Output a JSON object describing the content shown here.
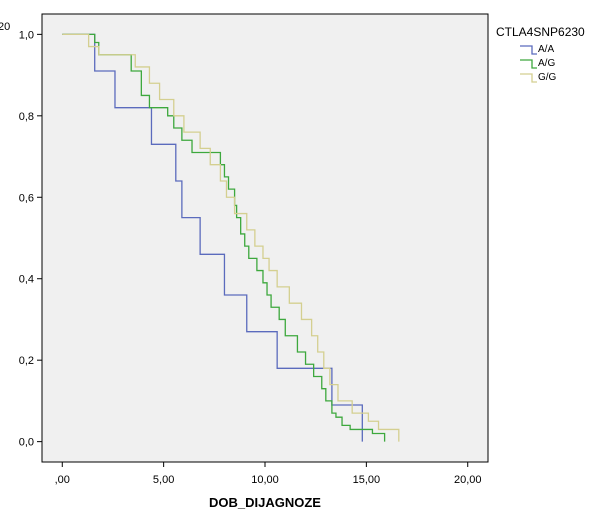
{
  "chart_data": {
    "type": "line",
    "step": true,
    "title": "",
    "top_left_fragment": "20",
    "xlabel": "DOB_DIJAGNOZE",
    "ylabel": "",
    "xlim": [
      -1.0,
      21.0
    ],
    "ylim": [
      -0.05,
      1.05
    ],
    "x_ticks": [
      0,
      5,
      10,
      15,
      20
    ],
    "x_tick_labels": [
      ",00",
      "5,00",
      "10,00",
      "15,00",
      "20,00"
    ],
    "y_ticks": [
      0.0,
      0.2,
      0.4,
      0.6,
      0.8,
      1.0
    ],
    "y_tick_labels": [
      "0,0",
      "0,2",
      "0,4",
      "0,6",
      "0,8",
      "1,0"
    ],
    "grid": false,
    "plot_background": "#f0f0f0",
    "legend": {
      "title": "CTLA4SNP6230",
      "placement": "top-right-outside"
    },
    "series": [
      {
        "name": "A/A",
        "color": "#5b6bbd",
        "x": [
          1.6,
          2.6,
          4.4,
          5.6,
          5.9,
          6.8,
          8.0,
          9.1,
          10.6,
          11.6,
          13.3,
          14.8
        ],
        "y": [
          0.91,
          0.82,
          0.73,
          0.64,
          0.55,
          0.46,
          0.36,
          0.27,
          0.18,
          0.18,
          0.09,
          0.0
        ]
      },
      {
        "name": "A/G",
        "color": "#3da83d",
        "x": [
          1.6,
          1.8,
          3.4,
          3.9,
          4.3,
          5.2,
          5.5,
          5.9,
          6.4,
          7.8,
          8.0,
          8.2,
          8.5,
          8.6,
          8.8,
          9.0,
          9.2,
          9.6,
          9.9,
          10.1,
          10.3,
          10.7,
          11.0,
          11.6,
          12.0,
          12.4,
          12.8,
          13.0,
          13.3,
          13.5,
          13.8,
          14.2,
          15.3,
          15.9
        ],
        "y": [
          0.98,
          0.95,
          0.91,
          0.85,
          0.82,
          0.8,
          0.77,
          0.74,
          0.71,
          0.68,
          0.65,
          0.62,
          0.58,
          0.55,
          0.51,
          0.48,
          0.45,
          0.42,
          0.39,
          0.36,
          0.33,
          0.3,
          0.26,
          0.22,
          0.19,
          0.16,
          0.13,
          0.1,
          0.07,
          0.06,
          0.04,
          0.03,
          0.02,
          0.0
        ]
      },
      {
        "name": "G/G",
        "color": "#d4cf90",
        "x": [
          1.3,
          1.8,
          3.6,
          4.3,
          4.8,
          5.5,
          6.0,
          6.8,
          7.3,
          7.8,
          8.1,
          8.5,
          9.1,
          9.5,
          9.9,
          10.2,
          10.6,
          11.2,
          11.8,
          12.3,
          12.6,
          12.9,
          13.2,
          13.6,
          14.3,
          15.1,
          15.6,
          16.6
        ],
        "y": [
          0.97,
          0.95,
          0.92,
          0.88,
          0.84,
          0.8,
          0.76,
          0.72,
          0.68,
          0.64,
          0.6,
          0.56,
          0.52,
          0.48,
          0.45,
          0.42,
          0.38,
          0.34,
          0.3,
          0.26,
          0.22,
          0.18,
          0.14,
          0.1,
          0.07,
          0.05,
          0.03,
          0.0
        ]
      }
    ]
  }
}
